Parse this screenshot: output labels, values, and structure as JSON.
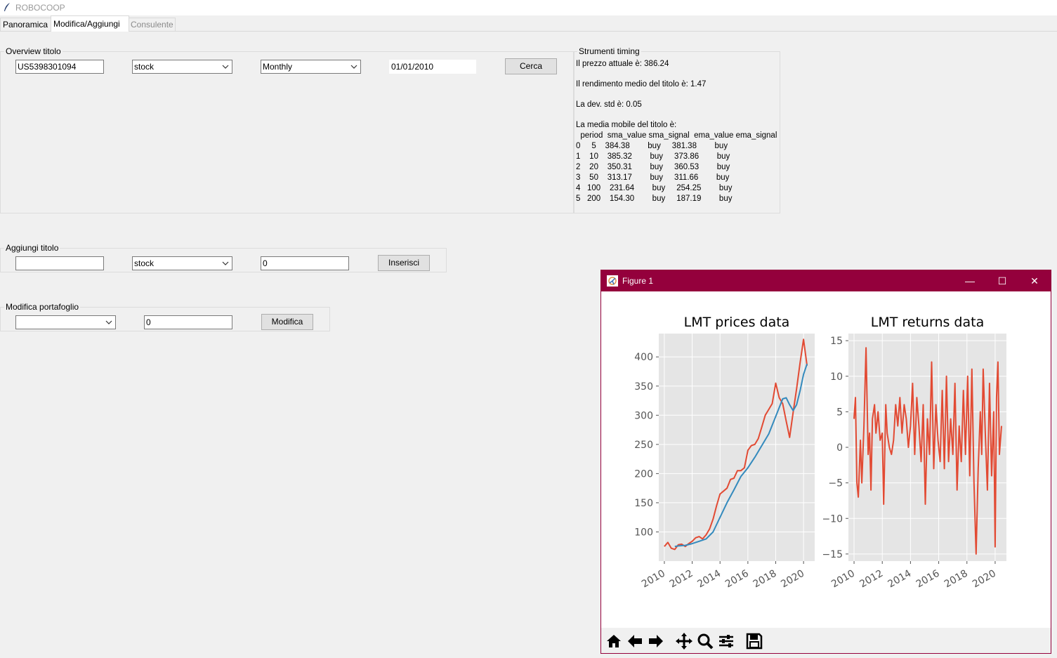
{
  "app": {
    "title": "ROBOCOOP"
  },
  "tabs": [
    {
      "label": "Panoramica",
      "state": "normal"
    },
    {
      "label": "Modifica/Aggiungi",
      "state": "active"
    },
    {
      "label": "Consulente",
      "state": "disabled"
    }
  ],
  "overview": {
    "legend": "Overview titolo",
    "isin_value": "US5398301094",
    "type_value": "stock",
    "frequency_value": "Monthly",
    "date_value": "01/01/2010",
    "search_label": "Cerca"
  },
  "timing": {
    "legend": "Strumenti timing",
    "price_line": "Il prezzo attuale è: 386.24",
    "return_line": "Il rendimento medio del titolo è: 1.47",
    "std_line": "La dev. std è: 0.05",
    "ma_title": "La media mobile del titolo è:",
    "table_header": "  period  sma_value sma_signal  ema_value ema_signal",
    "rows": [
      "0     5    384.38        buy     381.38        buy",
      "1    10    385.32        buy     373.86        buy",
      "2    20    350.31        buy     360.53        buy",
      "3    50    313.17        buy     311.66        buy",
      "4   100    231.64        buy     254.25        buy",
      "5   200    154.30        buy     187.19        buy"
    ]
  },
  "add": {
    "legend": "Aggiungi titolo",
    "name_value": "",
    "type_value": "stock",
    "qty_value": "0",
    "insert_label": "Inserisci"
  },
  "modify": {
    "legend": "Modifica portafoglio",
    "select_value": "",
    "qty_value": "0",
    "modify_label": "Modifica"
  },
  "figure": {
    "window_title": "Figure 1",
    "minimize": "—",
    "maximize": "☐",
    "close": "✕",
    "toolbar_icons": [
      "home-icon",
      "back-icon",
      "forward-icon",
      "pan-icon",
      "zoom-icon",
      "configure-icon",
      "save-icon"
    ]
  },
  "chart_data": [
    {
      "type": "line",
      "title": "LMT prices data",
      "xlabel": "",
      "ylabel": "",
      "xlim": [
        2009.6,
        2020.8
      ],
      "ylim": [
        50,
        440
      ],
      "xticks": [
        "2010",
        "2012",
        "2014",
        "2016",
        "2018",
        "2020"
      ],
      "yticks": [
        100,
        150,
        200,
        250,
        300,
        350,
        400
      ],
      "grid": true,
      "series": [
        {
          "color": "#e24a33",
          "x": [
            2010.0,
            2010.25,
            2010.5,
            2010.75,
            2011.0,
            2011.25,
            2011.5,
            2011.75,
            2012.0,
            2012.25,
            2012.5,
            2012.75,
            2013.0,
            2013.25,
            2013.5,
            2013.75,
            2014.0,
            2014.25,
            2014.5,
            2014.75,
            2015.0,
            2015.25,
            2015.5,
            2015.75,
            2016.0,
            2016.25,
            2016.5,
            2016.75,
            2017.0,
            2017.25,
            2017.5,
            2017.75,
            2018.0,
            2018.25,
            2018.5,
            2018.75,
            2019.0,
            2019.25,
            2019.5,
            2019.75,
            2020.0,
            2020.25
          ],
          "values": [
            75,
            82,
            72,
            70,
            78,
            79,
            75,
            80,
            84,
            90,
            92,
            88,
            95,
            105,
            122,
            145,
            165,
            170,
            175,
            190,
            192,
            205,
            205,
            210,
            240,
            248,
            250,
            260,
            280,
            300,
            310,
            320,
            355,
            330,
            320,
            290,
            262,
            305,
            345,
            390,
            430,
            385
          ]
        },
        {
          "color": "#348abd",
          "x": [
            2010.75,
            2011.0,
            2011.5,
            2012.0,
            2012.5,
            2013.0,
            2013.5,
            2014.0,
            2014.5,
            2015.0,
            2015.5,
            2016.0,
            2016.5,
            2017.0,
            2017.5,
            2018.0,
            2018.5,
            2018.75,
            2019.0,
            2019.25,
            2019.5,
            2019.75,
            2020.0,
            2020.25
          ],
          "values": [
            75,
            76,
            77,
            80,
            84,
            88,
            100,
            125,
            150,
            172,
            195,
            210,
            228,
            248,
            268,
            298,
            328,
            330,
            318,
            308,
            318,
            342,
            370,
            388
          ]
        }
      ]
    },
    {
      "type": "line",
      "title": "LMT returns data",
      "xlabel": "",
      "ylabel": "",
      "xlim": [
        2009.6,
        2020.8
      ],
      "ylim": [
        -16,
        16
      ],
      "xticks": [
        "2010",
        "2012",
        "2014",
        "2016",
        "2018",
        "2020"
      ],
      "yticks": [
        15,
        10,
        5,
        0,
        -5,
        -10,
        -15
      ],
      "grid": true,
      "series": [
        {
          "color": "#e24a33",
          "x": [
            2010.0,
            2010.1,
            2010.2,
            2010.3,
            2010.45,
            2010.55,
            2010.7,
            2010.85,
            2011.0,
            2011.1,
            2011.2,
            2011.3,
            2011.45,
            2011.55,
            2011.7,
            2011.85,
            2012.0,
            2012.1,
            2012.25,
            2012.35,
            2012.5,
            2012.65,
            2012.8,
            2012.95,
            2013.1,
            2013.25,
            2013.4,
            2013.55,
            2013.7,
            2013.85,
            2014.0,
            2014.15,
            2014.3,
            2014.45,
            2014.6,
            2014.75,
            2014.9,
            2015.05,
            2015.2,
            2015.35,
            2015.5,
            2015.65,
            2015.8,
            2015.95,
            2016.1,
            2016.25,
            2016.4,
            2016.55,
            2016.7,
            2016.85,
            2017.0,
            2017.15,
            2017.3,
            2017.45,
            2017.6,
            2017.75,
            2017.9,
            2018.05,
            2018.2,
            2018.35,
            2018.5,
            2018.65,
            2018.8,
            2018.95,
            2019.05,
            2019.15,
            2019.3,
            2019.45,
            2019.6,
            2019.75,
            2019.9,
            2020.0,
            2020.1,
            2020.2,
            2020.3,
            2020.45
          ],
          "values": [
            4,
            7,
            -5,
            -7,
            1,
            -5,
            3,
            14,
            -1,
            2,
            -6,
            4,
            6,
            2,
            5,
            1,
            2,
            -8,
            6,
            2,
            0,
            -1,
            1,
            6,
            3,
            7,
            2,
            6,
            4,
            0,
            3,
            9,
            -1,
            7,
            3,
            -2,
            6,
            -8,
            4,
            -1,
            12,
            -3,
            6,
            1,
            -2,
            8,
            -3,
            10,
            -2,
            4,
            -1,
            9,
            -6,
            3,
            -2,
            8,
            -1,
            10,
            -4,
            11,
            -5,
            -15,
            -3,
            5,
            -1,
            11,
            2,
            -6,
            9,
            -4,
            5,
            -14,
            7,
            12,
            -1,
            3
          ]
        }
      ]
    }
  ]
}
